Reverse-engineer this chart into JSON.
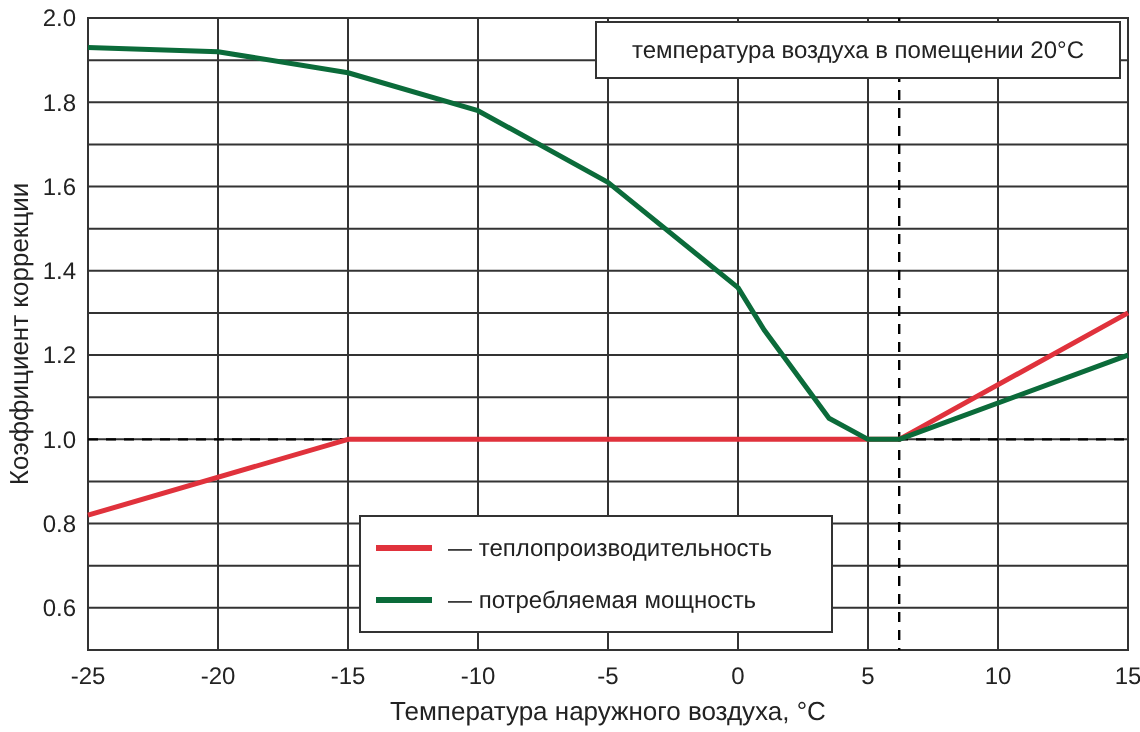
{
  "chart_data": {
    "type": "line",
    "xlabel": "Температура наружного воздуха, °С",
    "ylabel": "Коэффициент коррекции",
    "xlim": [
      -25,
      15
    ],
    "xticks": [
      -25,
      -20,
      -15,
      -10,
      -5,
      0,
      5,
      10,
      15
    ],
    "ylim": [
      0.5,
      2.0
    ],
    "yticks": [
      {
        "value": 0.5,
        "label": null
      },
      0.6,
      {
        "value": 0.7,
        "label": null
      },
      0.8,
      {
        "value": 0.9,
        "label": null
      },
      {
        "value": 1.0,
        "label": "1.0"
      },
      {
        "value": 1.1,
        "label": null
      },
      1.2,
      {
        "value": 1.3,
        "label": null
      },
      1.4,
      {
        "value": 1.5,
        "label": null
      },
      1.6,
      {
        "value": 1.7,
        "label": null
      },
      1.8,
      {
        "value": 1.9,
        "label": null
      },
      {
        "value": 2.0,
        "label": "2.0"
      }
    ],
    "grid": true,
    "legend": "bottom",
    "line_style": "solid",
    "marker": "none",
    "series": [
      {
        "name": "— теплопроизводительность",
        "color": "#e0323c",
        "x": [
          -25,
          -15,
          6.2,
          15
        ],
        "values": [
          0.82,
          1.0,
          1.0,
          1.3
        ]
      },
      {
        "name": "— потребляемая мощность",
        "color": "#0b6b3a",
        "x": [
          -25,
          -20,
          -15,
          -10,
          -5,
          0,
          1,
          3.5,
          5,
          6.2,
          15
        ],
        "values": [
          1.93,
          1.92,
          1.87,
          1.78,
          1.61,
          1.36,
          1.26,
          1.05,
          1.0,
          1.0,
          1.2
        ]
      }
    ],
    "ref_lines": [
      {
        "axis": "y",
        "value": 1.0,
        "line_style": "dashed",
        "color": "#000000"
      },
      {
        "axis": "x",
        "value": 6.2,
        "line_style": "dashed",
        "color": "#000000"
      }
    ],
    "annotations": [
      "температура воздуха в помещении 20°С"
    ]
  }
}
